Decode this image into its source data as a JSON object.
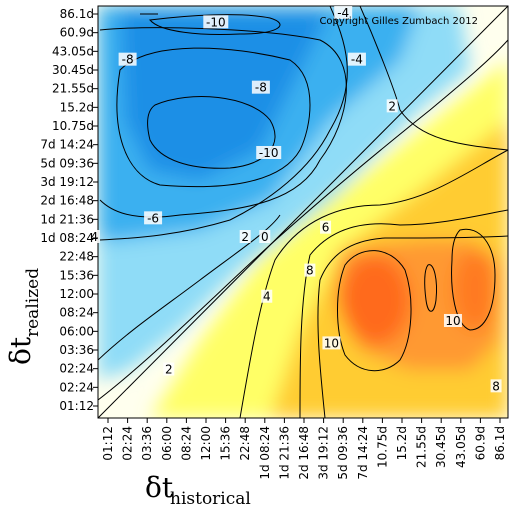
{
  "chart_data": {
    "type": "heatmap",
    "title": "",
    "copyright": "Copyright Gilles Zumbach 2012",
    "xlabel": {
      "symbol": "δt",
      "subscript": "historical"
    },
    "ylabel": {
      "symbol": "δt",
      "subscript": "realized"
    },
    "x_ticks": [
      "01:12",
      "02:24",
      "03:36",
      "06:00",
      "08:24",
      "12:00",
      "15:36",
      "22:48",
      "1d 08:24",
      "1d 21:36",
      "2d 16:48",
      "3d 19:12",
      "5d 09:36",
      "7d 14:24",
      "10.75d",
      "15.2d",
      "21.55d",
      "30.45d",
      "43.05d",
      "60.9d",
      "86.1d"
    ],
    "y_ticks": [
      "01:12",
      "02:24",
      "02:24",
      "03:36",
      "06:00",
      "08:24",
      "12:00",
      "15:36",
      "22:48",
      "1d 08:24",
      "1d 21:36",
      "2d 16:48",
      "3d 19:12",
      "5d 09:36",
      "7d 14:24",
      "10.75d",
      "15.2d",
      "21.55d",
      "30.45d",
      "43.05d",
      "60.9d",
      "86.1d"
    ],
    "colorscale": [
      "#1a8fe6",
      "#3ab0f0",
      "#8fdcf7",
      "#ffffff",
      "#ffff66",
      "#ffcc33",
      "#ff9933",
      "#ff6a1a"
    ],
    "grid": false,
    "contour_labels": [
      {
        "text": "-10",
        "x": 5.5,
        "y": 20.5
      },
      {
        "text": "-8",
        "x": 1.0,
        "y": 18.5
      },
      {
        "text": "-4",
        "x": 12.0,
        "y": 21.0
      },
      {
        "text": "-4",
        "x": 12.7,
        "y": 18.5
      },
      {
        "text": "-8",
        "x": 7.8,
        "y": 17.0
      },
      {
        "text": "2",
        "x": 14.5,
        "y": 16.0
      },
      {
        "text": "-10",
        "x": 8.2,
        "y": 13.5
      },
      {
        "text": "-6",
        "x": 2.3,
        "y": 10.0
      },
      {
        "text": "4",
        "x": -0.7,
        "y": 9.0
      },
      {
        "text": "2",
        "x": 7.0,
        "y": 9.0
      },
      {
        "text": "0",
        "x": 8.0,
        "y": 9.0
      },
      {
        "text": "6",
        "x": 11.1,
        "y": 9.5
      },
      {
        "text": "8",
        "x": 10.3,
        "y": 7.2
      },
      {
        "text": "4",
        "x": 8.1,
        "y": 5.8
      },
      {
        "text": "10",
        "x": 11.4,
        "y": 3.3
      },
      {
        "text": "10",
        "x": 17.6,
        "y": 4.5
      },
      {
        "text": "2",
        "x": 3.1,
        "y": 1.9
      },
      {
        "text": "8",
        "x": 19.8,
        "y": 1.0
      }
    ]
  }
}
